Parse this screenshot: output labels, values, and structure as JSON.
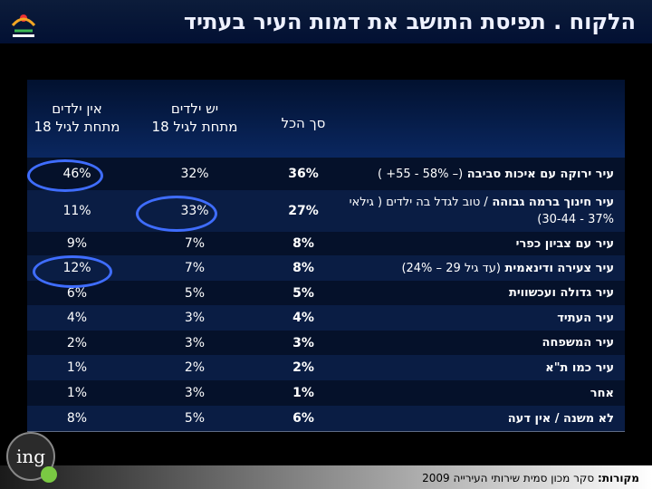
{
  "title": "הלקוח . תפיסת התושב את דמות העיר בעתיד",
  "columns": {
    "total": "סך הכל",
    "with_kids_line1": "יש ילדים",
    "with_kids_line2": "מתחת לגיל 18",
    "no_kids_line1": "אין ילדים",
    "no_kids_line2": "מתחת לגיל 18"
  },
  "rows": [
    {
      "label": "עיר ירוקה עם איכות סביבה",
      "label_sub": "(– 58% - 55+ )",
      "total": "36%",
      "with_kids": "32%",
      "no_kids": "46%"
    },
    {
      "label": "עיר חינוך ברמה גבוהה",
      "label_sub": "/ טוב לגדל בה ילדים ( גילאי 37% - 30-44)",
      "total": "27%",
      "with_kids": "33%",
      "no_kids": "11%"
    },
    {
      "label": "עיר עם צביון כפרי",
      "label_sub": "",
      "total": "8%",
      "with_kids": "7%",
      "no_kids": "9%"
    },
    {
      "label": "עיר צעירה ודינאמית",
      "label_sub": "(עד גיל 29 – 24%)",
      "total": "8%",
      "with_kids": "7%",
      "no_kids": "12%"
    },
    {
      "label": "עיר גדולה ועכשווית",
      "label_sub": "",
      "total": "5%",
      "with_kids": "5%",
      "no_kids": "6%"
    },
    {
      "label": "עיר העתיד",
      "label_sub": "",
      "total": "4%",
      "with_kids": "3%",
      "no_kids": "4%"
    },
    {
      "label": "עיר המשפחה",
      "label_sub": "",
      "total": "3%",
      "with_kids": "3%",
      "no_kids": "2%"
    },
    {
      "label": "עיר כמו ת\"א",
      "label_sub": "",
      "total": "2%",
      "with_kids": "2%",
      "no_kids": "1%"
    },
    {
      "label": "אחר",
      "label_sub": "",
      "total": "1%",
      "with_kids": "3%",
      "no_kids": "1%"
    },
    {
      "label": "לא משנה / אין דעה",
      "label_sub": "",
      "total": "6%",
      "with_kids": "5%",
      "no_kids": "8%"
    }
  ],
  "source_label": "מקורות:",
  "source_text": "סקר מכון סמית שירותי העירייה 2009",
  "logo_text": "ing",
  "colors": {
    "highlight": "#3f6dff",
    "header_bg": "#0a2760",
    "row_bg": "#05112a"
  }
}
